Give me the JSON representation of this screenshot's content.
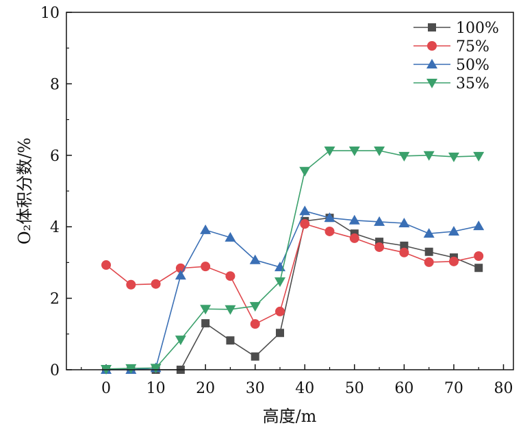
{
  "chart_data": {
    "type": "line",
    "title": "",
    "xlabel": "高度/m",
    "ylabel": "O₂体积分数/%",
    "xlim": [
      -8,
      82
    ],
    "ylim": [
      0,
      10
    ],
    "xticks": [
      0,
      10,
      20,
      30,
      40,
      50,
      60,
      70,
      80
    ],
    "yticks": [
      0,
      2,
      4,
      6,
      8,
      10
    ],
    "legend_position": "top-right",
    "x": [
      0,
      5,
      10,
      15,
      20,
      25,
      30,
      35,
      40,
      45,
      50,
      55,
      60,
      65,
      70,
      75
    ],
    "series": [
      {
        "name": "100%",
        "marker": "square",
        "color": "#4d4d4d",
        "values": [
          0,
          0,
          0,
          0,
          1.3,
          0.82,
          0.37,
          1.03,
          4.16,
          4.25,
          3.81,
          3.58,
          3.47,
          3.3,
          3.14,
          2.85
        ]
      },
      {
        "name": "75%",
        "marker": "circle",
        "color": "#e0474c",
        "values": [
          2.93,
          2.38,
          2.4,
          2.84,
          2.89,
          2.62,
          1.28,
          1.63,
          4.08,
          3.87,
          3.68,
          3.43,
          3.28,
          3.01,
          3.03,
          3.18
        ]
      },
      {
        "name": "50%",
        "marker": "triangle-up",
        "color": "#3a6fb5",
        "values": [
          0,
          0,
          0.05,
          2.64,
          3.91,
          3.7,
          3.07,
          2.87,
          4.44,
          4.25,
          4.18,
          4.14,
          4.1,
          3.81,
          3.87,
          4.02
        ]
      },
      {
        "name": "35%",
        "marker": "triangle-down",
        "color": "#3aa06b",
        "values": [
          0.02,
          0.04,
          0.05,
          0.84,
          1.7,
          1.69,
          1.78,
          2.47,
          5.56,
          6.13,
          6.13,
          6.13,
          5.98,
          6.0,
          5.96,
          5.98
        ]
      }
    ]
  }
}
